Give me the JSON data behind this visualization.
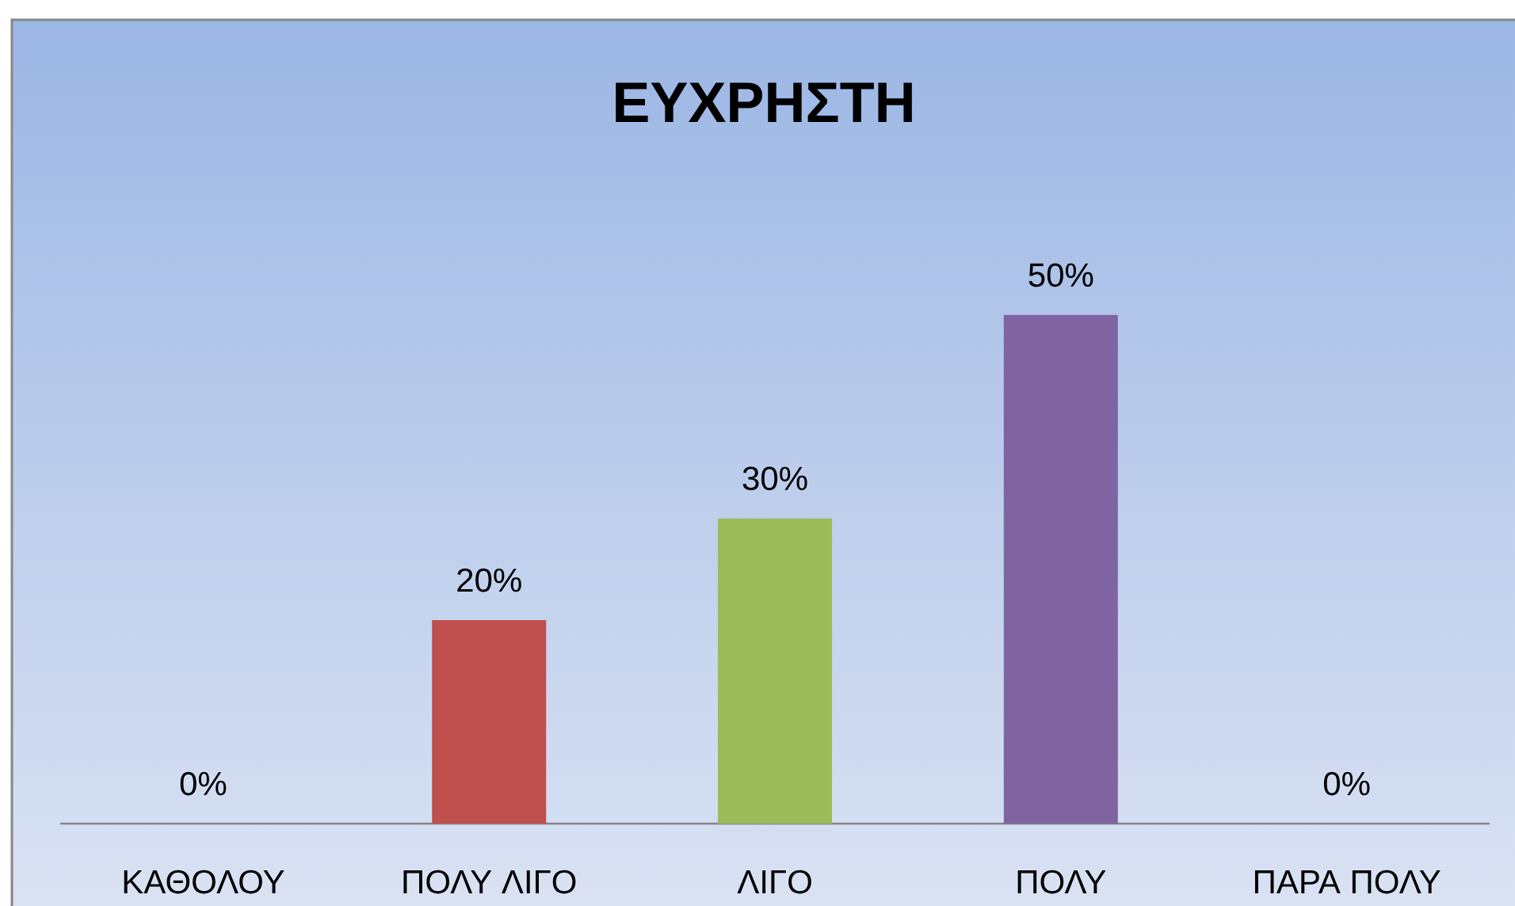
{
  "chart_data": {
    "type": "bar",
    "title": "ΕΥΧΡΗΣΤΗ",
    "categories": [
      "ΚΑΘΟΛΟΥ",
      "ΠΟΛΥ ΛΙΓΟ",
      "ΛΙΓΟ",
      "ΠΟΛΥ",
      "ΠΑΡΑ ΠΟΛΥ"
    ],
    "values": [
      0,
      20,
      30,
      50,
      0
    ],
    "colors": [
      "#4f81bd",
      "#c0504d",
      "#9bbb59",
      "#8064a2",
      "#4bacc6"
    ],
    "value_labels": [
      "0%",
      "20%",
      "30%",
      "50%",
      "0%"
    ]
  }
}
